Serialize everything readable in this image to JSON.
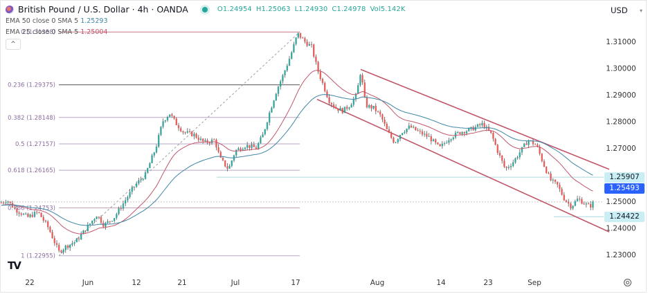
{
  "header": {
    "title": "British Pound / U.S. Dollar · 4h · OANDA",
    "ohlc": {
      "open": "O1.24954",
      "high": "H1.25063",
      "low": "L1.24930",
      "close": "C1.24978",
      "volume": "Vol5.142K"
    },
    "currency": "USD",
    "collapse_icon": "chevron-up-icon"
  },
  "indicators": [
    {
      "label": "EMA 50 close 0 SMA 5",
      "value": "1.25293",
      "color": "#3f86a6"
    },
    {
      "label": "EMA 25 close 0 SMA 5",
      "value": "1.25004",
      "color": "#c2566a"
    }
  ],
  "price_tags": [
    {
      "label": "1.25907",
      "bg": "#c9eef3",
      "fg": "#131722",
      "price": 1.25907
    },
    {
      "label": "1.25493",
      "bg": "#2962ff",
      "fg": "#ffffff",
      "price": 1.25493
    },
    {
      "label": "1.24422",
      "bg": "#c9eef3",
      "fg": "#131722",
      "price": 1.24422
    }
  ],
  "chart_data": {
    "type": "candlestick",
    "title": "British Pound / U.S. Dollar · 4h · OANDA",
    "xlabel": "",
    "ylabel": "USD",
    "y_ticks": [
      "1.31000",
      "1.30000",
      "1.29000",
      "1.28000",
      "1.27000",
      "1.25000",
      "1.24000",
      "1.23000"
    ],
    "x_ticks": [
      "22",
      "Jun",
      "12",
      "21",
      "Jul",
      "17",
      "Aug",
      "14",
      "23",
      "Sep"
    ],
    "ylim": [
      1.2255,
      1.3165
    ],
    "grid": false,
    "fibonacci": [
      {
        "level": "0",
        "price": 1.31358,
        "label": "0 (1.31358)"
      },
      {
        "level": "0.236",
        "price": 1.29375,
        "label": "0.236 (1.29375)"
      },
      {
        "level": "0.382",
        "price": 1.28148,
        "label": "0.382 (1.28148)"
      },
      {
        "level": "0.5",
        "price": 1.27157,
        "label": "0.5 (1.27157)"
      },
      {
        "level": "0.618",
        "price": 1.26165,
        "label": "0.618 (1.26165)"
      },
      {
        "level": "0.786",
        "price": 1.24753,
        "label": "0.786 (1.24753)"
      },
      {
        "level": "1",
        "price": 1.22955,
        "label": "1 (1.22955)"
      }
    ],
    "descending_channel": {
      "upper": [
        [
          521,
          1.2995
        ],
        [
          880,
          1.262
        ]
      ],
      "lower": [
        [
          458,
          1.2883
        ],
        [
          880,
          1.2385
        ]
      ]
    },
    "horizontal_levels": [
      1.25907,
      1.24422
    ],
    "last_price": 1.24978,
    "series_summary": {
      "start": 1.2495,
      "low_may_end": 1.2296,
      "high_jul_14": 1.3136,
      "jul_end_high": 1.2998,
      "sep_low": 1.2442,
      "last": 1.24978
    },
    "ema50_last": 1.25293,
    "ema25_last": 1.25004,
    "legend": [
      "EMA 50 close 0 SMA 5",
      "EMA 25 close 0 SMA 5"
    ]
  }
}
